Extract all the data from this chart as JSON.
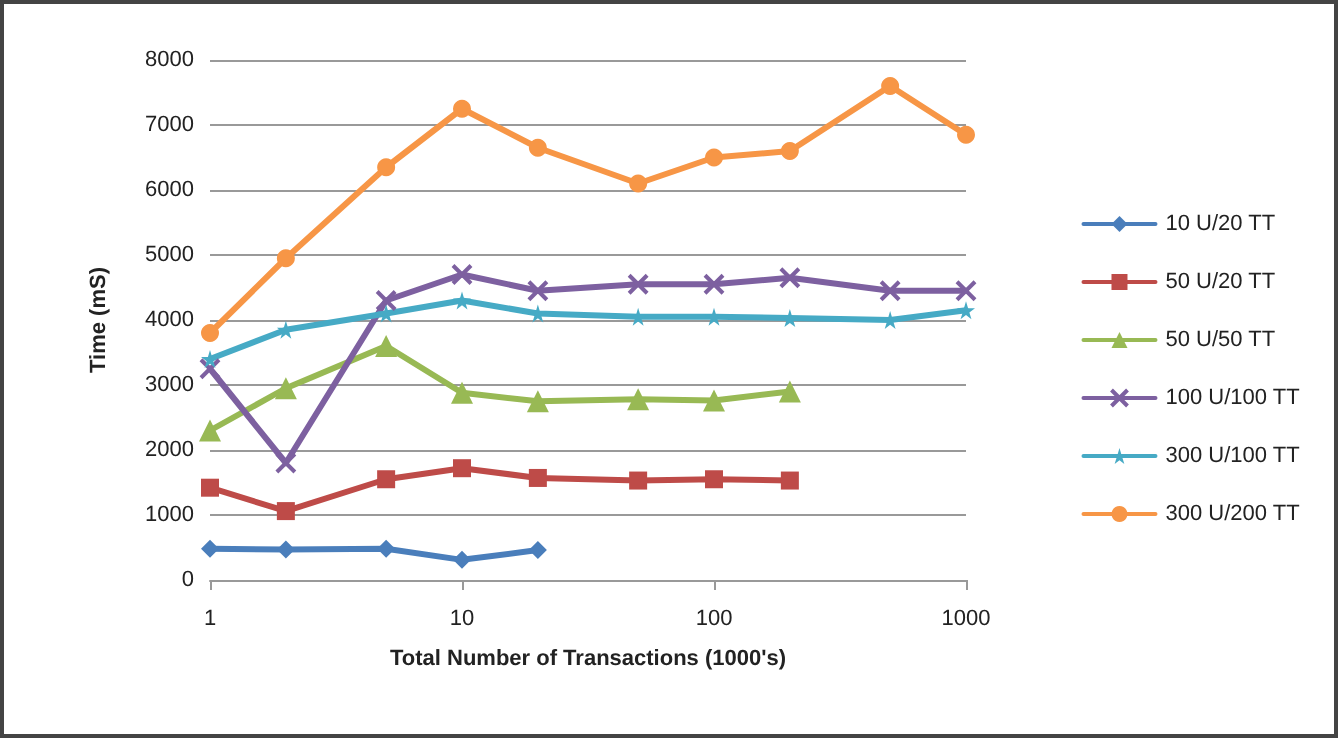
{
  "chart_data": {
    "type": "line",
    "xlabel": "Total Number of Transactions (1000's)",
    "ylabel": "Time (mS)",
    "log": "x",
    "xlim": [
      1,
      1000
    ],
    "xticks": [
      1,
      10,
      100,
      1000
    ],
    "ylim": [
      0,
      8000
    ],
    "yticks": [
      0,
      1000,
      2000,
      3000,
      4000,
      5000,
      6000,
      7000,
      8000
    ],
    "grid": "y",
    "legend": "right",
    "series": [
      {
        "name": "10 U/20 TT",
        "color": "#4a7ebb",
        "marker": "diamond",
        "x": [
          1,
          2,
          5,
          10,
          20
        ],
        "values": [
          480,
          470,
          480,
          310,
          460
        ]
      },
      {
        "name": "50 U/20 TT",
        "color": "#be4b48",
        "marker": "square",
        "x": [
          1,
          2,
          5,
          10,
          20,
          50,
          100,
          200
        ],
        "values": [
          1420,
          1060,
          1550,
          1720,
          1570,
          1530,
          1550,
          1530
        ]
      },
      {
        "name": "50 U/50 TT",
        "color": "#98b954",
        "marker": "triangle",
        "x": [
          1,
          2,
          5,
          10,
          20,
          50,
          100,
          200
        ],
        "values": [
          2300,
          2950,
          3600,
          2880,
          2750,
          2780,
          2760,
          2900
        ]
      },
      {
        "name": "100 U/100 TT",
        "color": "#7d60a0",
        "marker": "cross",
        "x": [
          1,
          2,
          5,
          10,
          20,
          50,
          100,
          200,
          500,
          1000
        ],
        "values": [
          3250,
          1800,
          4300,
          4700,
          4450,
          4550,
          4550,
          4650,
          4450,
          4450
        ]
      },
      {
        "name": "300 U/100 TT",
        "color": "#46aac5",
        "marker": "star",
        "x": [
          1,
          2,
          5,
          10,
          20,
          50,
          100,
          200,
          500,
          1000
        ],
        "values": [
          3400,
          3850,
          4100,
          4300,
          4100,
          4050,
          4050,
          4030,
          4000,
          4150
        ]
      },
      {
        "name": "300 U/200 TT",
        "color": "#f79646",
        "marker": "circle",
        "x": [
          1,
          2,
          5,
          10,
          20,
          50,
          100,
          200,
          500,
          1000
        ],
        "values": [
          3800,
          4950,
          6350,
          7250,
          6650,
          6100,
          6500,
          6600,
          7600,
          6850
        ]
      }
    ]
  }
}
